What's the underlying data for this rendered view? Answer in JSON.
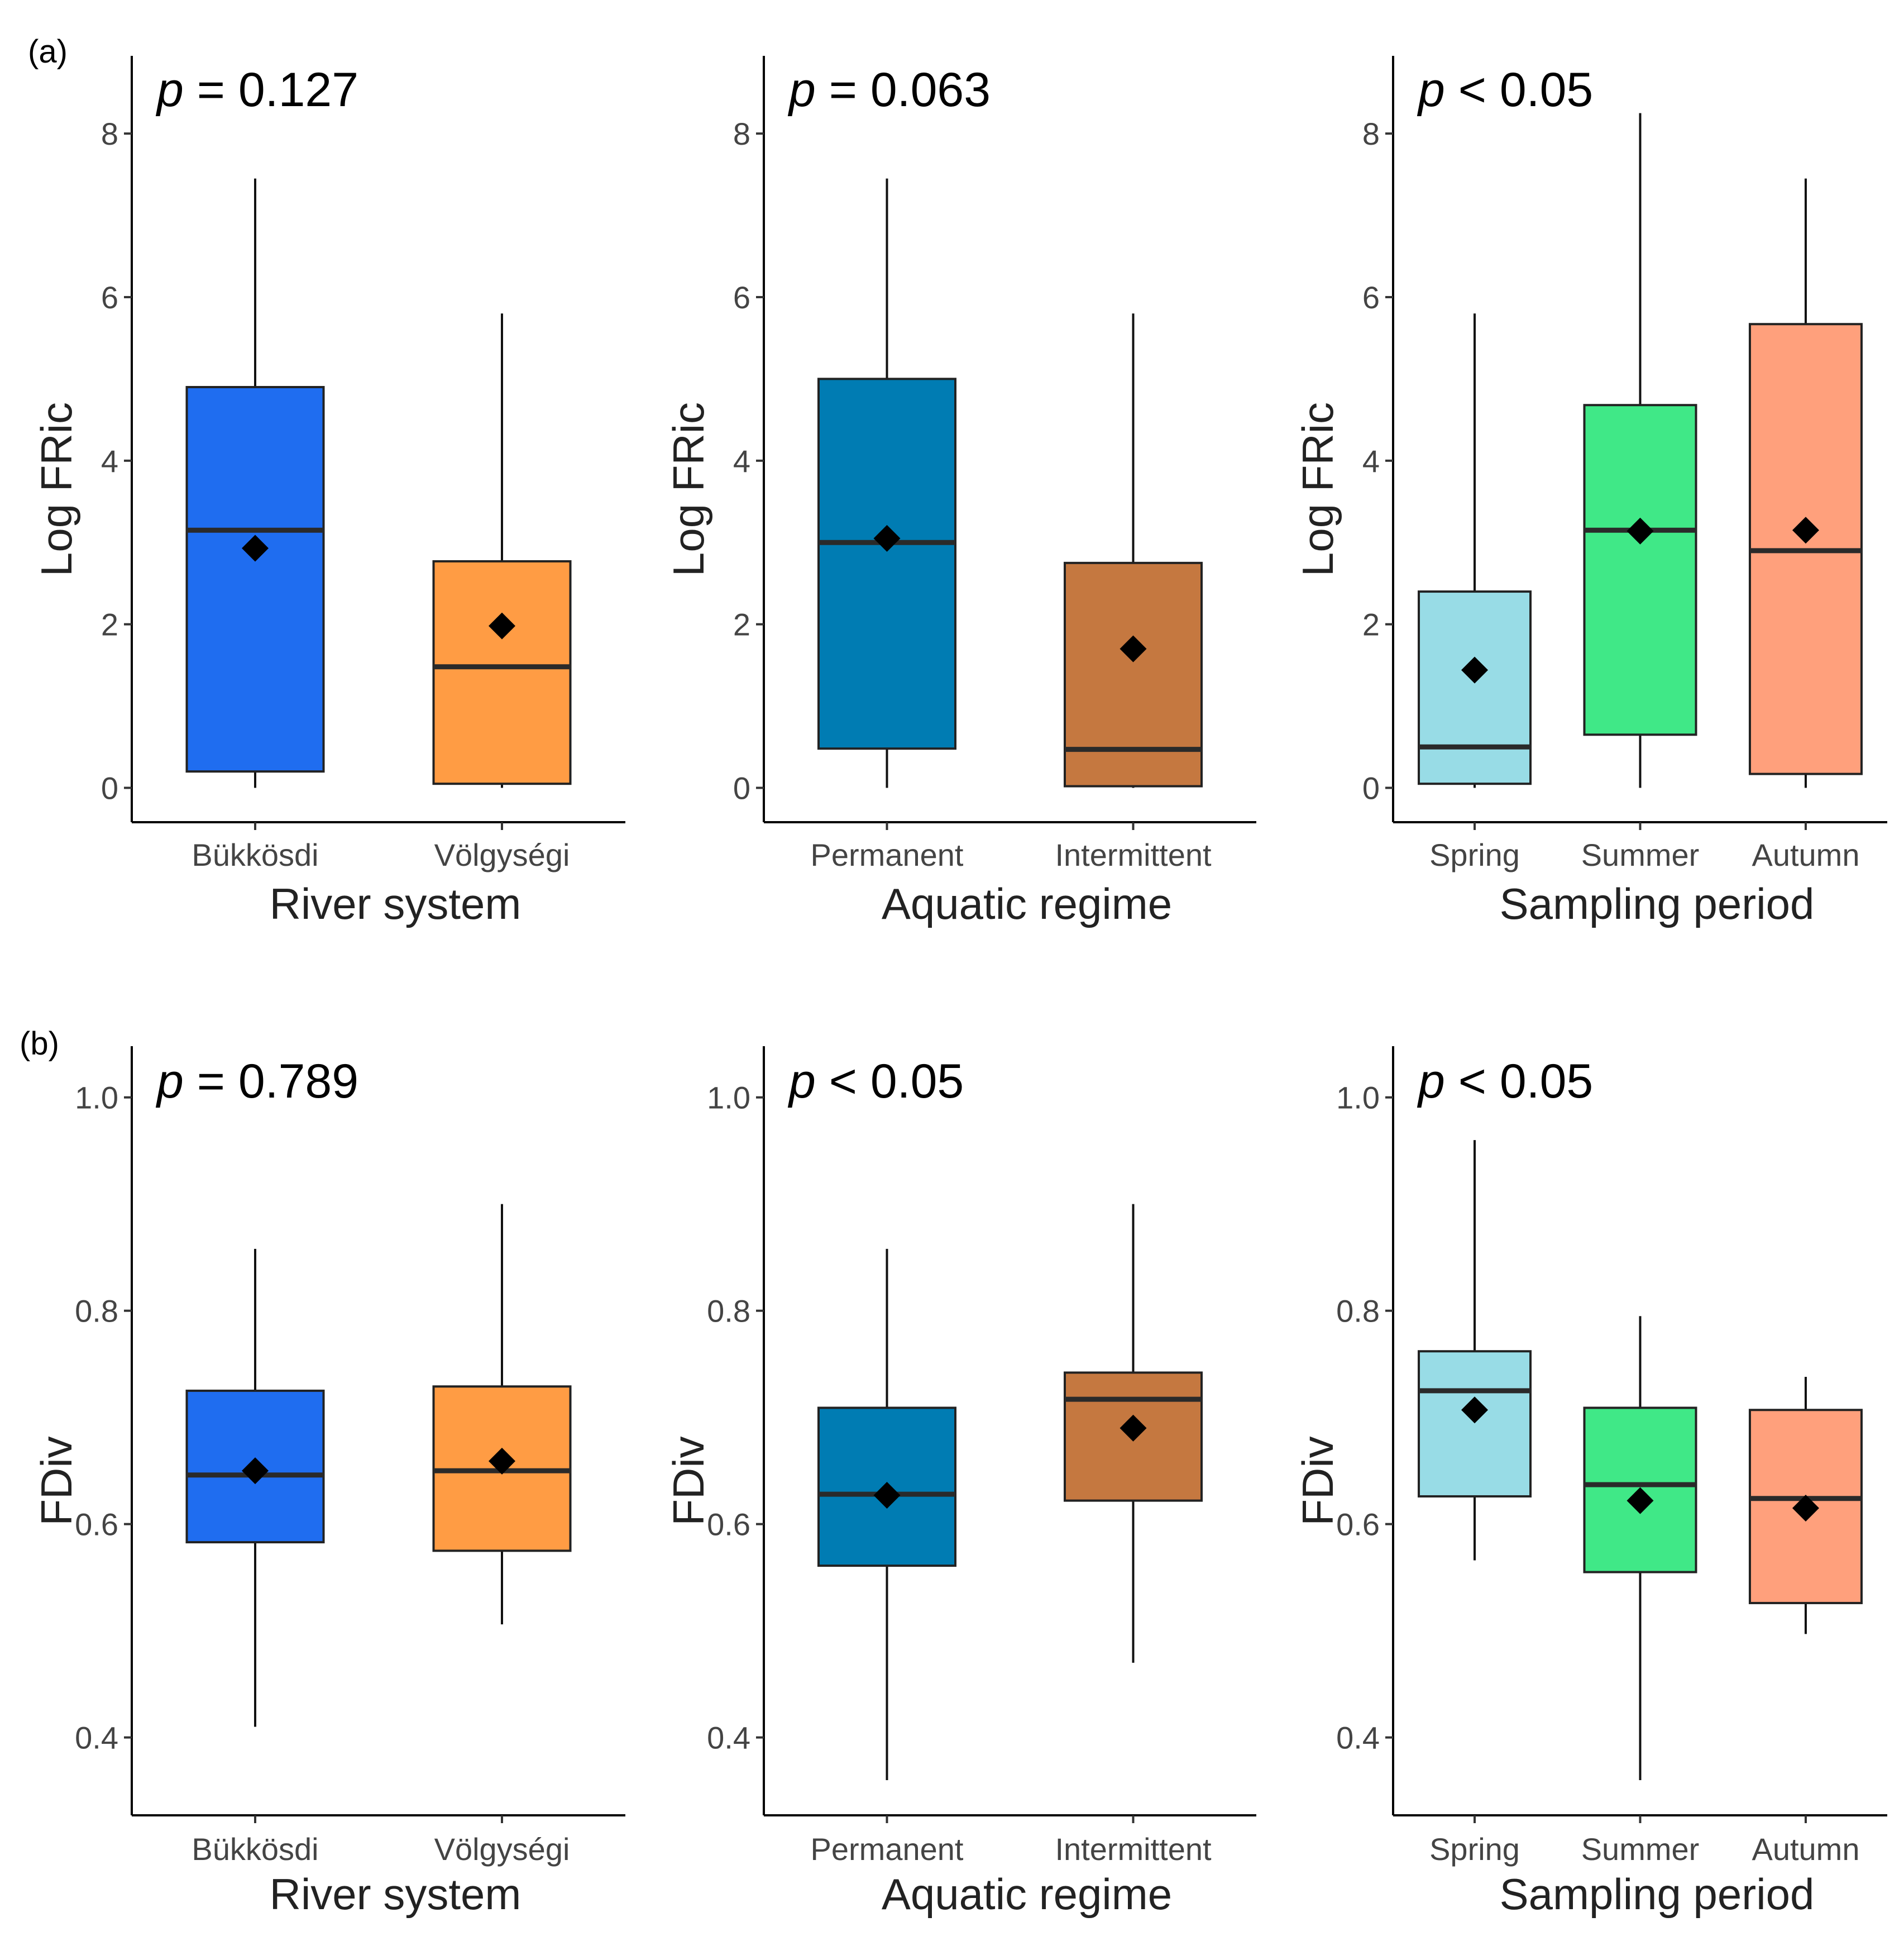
{
  "panel_labels": [
    "(a)",
    "(b)"
  ],
  "colors": {
    "Bükkösdi": "#1f6df0",
    "Völgységi": "#ff9c44",
    "Permanent": "#007cb3",
    "Intermittent": "#c57840",
    "Spring": "#98dce6",
    "Summer": "#40e887",
    "Autumn": "#ffa07c"
  },
  "chart_data": [
    {
      "type": "box",
      "panel": "(a)",
      "title": "p = 0.127",
      "p_symbol": "p",
      "p_text": " = 0.127",
      "xlabel": "River system",
      "ylabel": "Log FRic",
      "categories": [
        "Bükkösdi",
        "Völgységi"
      ],
      "yticks": [
        0,
        2,
        4,
        6,
        8
      ],
      "ytick_labels": [
        "0",
        "2",
        "4",
        "6",
        "8"
      ],
      "ylim": [
        -0.42,
        8.95
      ],
      "boxes": [
        {
          "label": "Bükkösdi",
          "min": 0.0,
          "q1": 0.2,
          "median": 3.15,
          "q3": 4.9,
          "max": 7.45,
          "mean": 2.93
        },
        {
          "label": "Völgységi",
          "min": 0.0,
          "q1": 0.05,
          "median": 1.48,
          "q3": 2.77,
          "max": 5.8,
          "mean": 1.98
        }
      ]
    },
    {
      "type": "box",
      "panel": "(a)",
      "title": "p = 0.063",
      "p_symbol": "p",
      "p_text": " = 0.063",
      "xlabel": "Aquatic regime",
      "ylabel": "Log FRic",
      "categories": [
        "Permanent",
        "Intermittent"
      ],
      "yticks": [
        0,
        2,
        4,
        6,
        8
      ],
      "ytick_labels": [
        "0",
        "2",
        "4",
        "6",
        "8"
      ],
      "ylim": [
        -0.42,
        8.95
      ],
      "boxes": [
        {
          "label": "Permanent",
          "min": 0.0,
          "q1": 0.48,
          "median": 3.0,
          "q3": 5.0,
          "max": 7.45,
          "mean": 3.05
        },
        {
          "label": "Intermittent",
          "min": 0.0,
          "q1": 0.02,
          "median": 0.47,
          "q3": 2.75,
          "max": 5.8,
          "mean": 1.7
        }
      ]
    },
    {
      "type": "box",
      "panel": "(a)",
      "title": "p < 0.05",
      "p_symbol": "p",
      "p_text": " < 0.05",
      "xlabel": "Sampling period",
      "ylabel": "Log FRic",
      "categories": [
        "Spring",
        "Summer",
        "Autumn"
      ],
      "yticks": [
        0,
        2,
        4,
        6,
        8
      ],
      "ytick_labels": [
        "0",
        "2",
        "4",
        "6",
        "8"
      ],
      "ylim": [
        -0.42,
        8.95
      ],
      "boxes": [
        {
          "label": "Spring",
          "min": 0.0,
          "q1": 0.05,
          "median": 0.5,
          "q3": 2.4,
          "max": 5.8,
          "mean": 1.44
        },
        {
          "label": "Summer",
          "min": 0.0,
          "q1": 0.65,
          "median": 3.15,
          "q3": 4.68,
          "max": 8.25,
          "mean": 3.14
        },
        {
          "label": "Autumn",
          "min": 0.0,
          "q1": 0.17,
          "median": 2.9,
          "q3": 5.67,
          "max": 7.45,
          "mean": 3.15
        }
      ]
    },
    {
      "type": "box",
      "panel": "(b)",
      "title": "p = 0.789",
      "p_symbol": "p",
      "p_text": " = 0.789",
      "xlabel": "River system",
      "ylabel": "FDiv",
      "categories": [
        "Bükkösdi",
        "Völgységi"
      ],
      "yticks": [
        0.4,
        0.6,
        0.8,
        1.0
      ],
      "ytick_labels": [
        "0.4",
        "0.6",
        "0.8",
        "1.0"
      ],
      "ylim": [
        0.327,
        1.048
      ],
      "boxes": [
        {
          "label": "Bükkösdi",
          "min": 0.41,
          "q1": 0.583,
          "median": 0.646,
          "q3": 0.725,
          "max": 0.858,
          "mean": 0.65
        },
        {
          "label": "Völgységi",
          "min": 0.506,
          "q1": 0.575,
          "median": 0.65,
          "q3": 0.729,
          "max": 0.9,
          "mean": 0.659
        }
      ]
    },
    {
      "type": "box",
      "panel": "(b)",
      "title": "p < 0.05",
      "p_symbol": "p",
      "p_text": " < 0.05",
      "xlabel": "Aquatic regime",
      "ylabel": "FDiv",
      "categories": [
        "Permanent",
        "Intermittent"
      ],
      "yticks": [
        0.4,
        0.6,
        0.8,
        1.0
      ],
      "ytick_labels": [
        "0.4",
        "0.6",
        "0.8",
        "1.0"
      ],
      "ylim": [
        0.327,
        1.048
      ],
      "boxes": [
        {
          "label": "Permanent",
          "min": 0.36,
          "q1": 0.561,
          "median": 0.628,
          "q3": 0.709,
          "max": 0.858,
          "mean": 0.627
        },
        {
          "label": "Intermittent",
          "min": 0.47,
          "q1": 0.622,
          "median": 0.717,
          "q3": 0.742,
          "max": 0.9,
          "mean": 0.69
        }
      ]
    },
    {
      "type": "box",
      "panel": "(b)",
      "title": "p < 0.05",
      "p_symbol": "p",
      "p_text": " < 0.05",
      "xlabel": "Sampling period",
      "ylabel": "FDiv",
      "categories": [
        "Spring",
        "Summer",
        "Autumn"
      ],
      "yticks": [
        0.4,
        0.6,
        0.8,
        1.0
      ],
      "ytick_labels": [
        "0.4",
        "0.6",
        "0.8",
        "1.0"
      ],
      "ylim": [
        0.327,
        1.048
      ],
      "boxes": [
        {
          "label": "Spring",
          "min": 0.566,
          "q1": 0.626,
          "median": 0.725,
          "q3": 0.762,
          "max": 0.96,
          "mean": 0.707
        },
        {
          "label": "Summer",
          "min": 0.36,
          "q1": 0.555,
          "median": 0.637,
          "q3": 0.709,
          "max": 0.795,
          "mean": 0.622
        },
        {
          "label": "Autumn",
          "min": 0.497,
          "q1": 0.526,
          "median": 0.624,
          "q3": 0.707,
          "max": 0.738,
          "mean": 0.615
        }
      ]
    }
  ]
}
